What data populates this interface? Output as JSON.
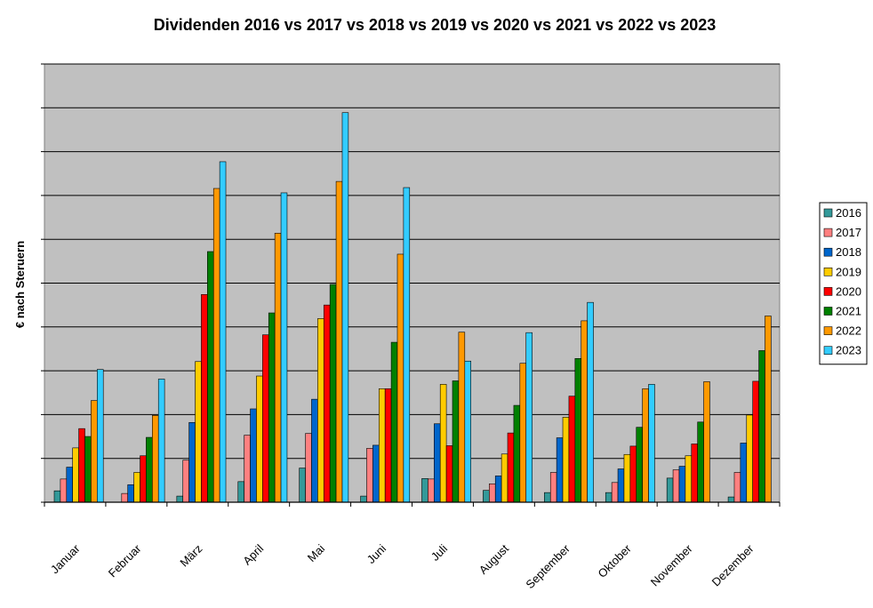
{
  "chart_data": {
    "type": "bar",
    "title": "Dividenden 2016 vs 2017 vs 2018 vs 2019 vs 2020 vs 2021 vs 2022 vs 2023",
    "xlabel": "",
    "ylabel": "€ nach Steruern",
    "ylim": [
      0,
      10
    ],
    "grid": true,
    "legend_position": "right",
    "categories": [
      "Januar",
      "Februar",
      "März",
      "April",
      "Mai",
      "Juni",
      "Juli",
      "August",
      "September",
      "Oktober",
      "November",
      "Dezember"
    ],
    "series": [
      {
        "name": "2016",
        "color": "#339999",
        "values": [
          0.26,
          0.0,
          0.14,
          0.47,
          0.78,
          0.14,
          0.54,
          0.27,
          0.22,
          0.22,
          0.55,
          0.12
        ]
      },
      {
        "name": "2017",
        "color": "#FF8080",
        "values": [
          0.53,
          0.2,
          0.96,
          1.53,
          1.57,
          1.23,
          0.53,
          0.42,
          0.68,
          0.45,
          0.74,
          0.68
        ]
      },
      {
        "name": "2018",
        "color": "#0066CC",
        "values": [
          0.8,
          0.4,
          1.82,
          2.13,
          2.35,
          1.3,
          1.79,
          0.6,
          1.47,
          0.76,
          0.82,
          1.35
        ]
      },
      {
        "name": "2019",
        "color": "#FFCC00",
        "values": [
          1.24,
          0.68,
          3.21,
          2.88,
          4.19,
          2.59,
          2.69,
          1.1,
          1.94,
          1.09,
          1.06,
          1.99
        ]
      },
      {
        "name": "2020",
        "color": "#FF0000",
        "values": [
          1.68,
          1.06,
          4.74,
          3.82,
          4.5,
          2.59,
          1.29,
          1.58,
          2.42,
          1.28,
          1.33,
          2.76
        ]
      },
      {
        "name": "2021",
        "color": "#008000",
        "values": [
          1.5,
          1.48,
          5.72,
          4.32,
          4.97,
          3.65,
          2.77,
          2.21,
          3.28,
          1.71,
          1.83,
          3.46
        ]
      },
      {
        "name": "2022",
        "color": "#FF9900",
        "values": [
          2.32,
          1.98,
          7.16,
          6.14,
          7.32,
          5.66,
          3.88,
          3.17,
          4.14,
          2.59,
          2.75,
          4.25
        ]
      },
      {
        "name": "2023",
        "color": "#33CCFF",
        "values": [
          3.03,
          2.81,
          7.77,
          7.06,
          8.89,
          7.18,
          3.22,
          3.87,
          4.56,
          2.69,
          0.0,
          0.0
        ]
      }
    ]
  }
}
